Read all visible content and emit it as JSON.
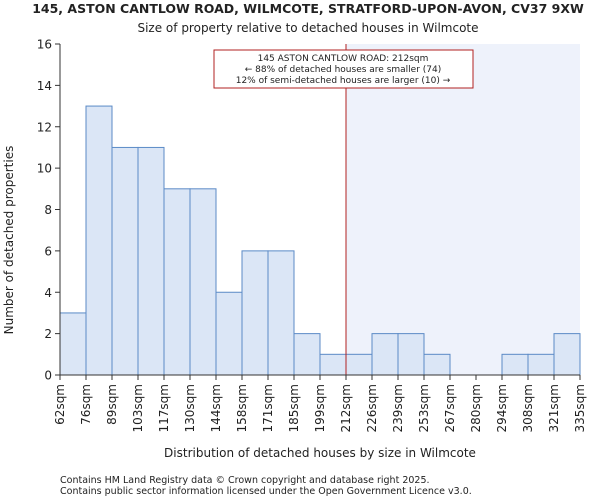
{
  "chart_data": {
    "type": "bar",
    "title": "145, ASTON CANTLOW ROAD, WILMCOTE, STRATFORD-UPON-AVON, CV37 9XW",
    "subtitle": "Size of property relative to detached houses in Wilmcote",
    "xlabel": "Distribution of detached houses by size in Wilmcote",
    "ylabel": "Number of detached properties",
    "ylim": [
      0,
      16
    ],
    "yticks": [
      0,
      2,
      4,
      6,
      8,
      10,
      12,
      14,
      16
    ],
    "bin_edges": [
      "62sqm",
      "76sqm",
      "89sqm",
      "103sqm",
      "117sqm",
      "130sqm",
      "144sqm",
      "158sqm",
      "171sqm",
      "185sqm",
      "199sqm",
      "212sqm",
      "226sqm",
      "239sqm",
      "253sqm",
      "267sqm",
      "280sqm",
      "294sqm",
      "308sqm",
      "321sqm",
      "335sqm"
    ],
    "values": [
      3,
      13,
      11,
      11,
      9,
      9,
      4,
      6,
      6,
      2,
      1,
      1,
      2,
      2,
      1,
      0,
      0,
      1,
      1,
      2
    ],
    "property_marker": {
      "bin_edge": "212sqm",
      "color": "#b22222"
    },
    "annotation": {
      "lines": [
        "145 ASTON CANTLOW ROAD: 212sqm",
        "← 88% of detached houses are smaller (74)",
        "12% of semi-detached houses are larger (10) →"
      ]
    },
    "colors": {
      "bar_fill": "#dbe6f6",
      "bar_stroke": "#5b8ac6",
      "highlight_region": "#eef2fb",
      "axis": "#333333"
    },
    "grid": false
  },
  "footer": {
    "line1": "Contains HM Land Registry data © Crown copyright and database right 2025.",
    "line2": "Contains public sector information licensed under the Open Government Licence v3.0."
  }
}
